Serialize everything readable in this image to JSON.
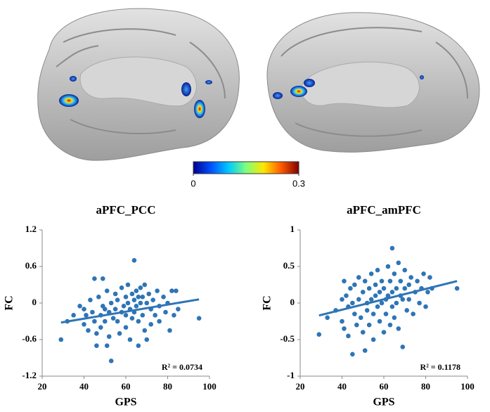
{
  "chart_data": [
    {
      "type": "colorbar",
      "colors": [
        "#00008f",
        "#0050ff",
        "#00c8ff",
        "#7dff7d",
        "#ffe600",
        "#ff5a00",
        "#800000"
      ],
      "xlim": [
        0,
        0.3
      ],
      "xticks": [
        0,
        0.3
      ]
    },
    {
      "type": "scatter",
      "title": "aPFC_PCC",
      "x_label": "GPS",
      "y_label": "FC",
      "annotation": "R² = 0.0734",
      "color": "#2e75b6",
      "xlim": [
        20,
        100
      ],
      "xticks": [
        20,
        40,
        60,
        80,
        100
      ],
      "ylim": [
        -1.2,
        1.2
      ],
      "yticks": [
        -1.2,
        -0.6,
        0,
        0.6,
        1.2
      ],
      "x": [
        29,
        32,
        35,
        38,
        40,
        40,
        41,
        42,
        43,
        44,
        45,
        45,
        46,
        46,
        47,
        48,
        48,
        49,
        49,
        50,
        50,
        51,
        51,
        52,
        52,
        53,
        53,
        54,
        55,
        55,
        56,
        56,
        57,
        58,
        58,
        59,
        60,
        60,
        60,
        61,
        61,
        62,
        62,
        63,
        63,
        64,
        64,
        64,
        65,
        65,
        66,
        66,
        66,
        67,
        67,
        68,
        68,
        69,
        69,
        70,
        70,
        71,
        72,
        72,
        73,
        74,
        75,
        76,
        76,
        78,
        79,
        80,
        81,
        82,
        83,
        84,
        85,
        95
      ],
      "values": [
        -0.6,
        -0.3,
        -0.2,
        -0.05,
        -0.1,
        -0.35,
        -0.2,
        -0.45,
        0.05,
        -0.15,
        0.4,
        -0.3,
        -0.5,
        -0.7,
        0.1,
        -0.2,
        -0.4,
        0.4,
        -0.05,
        -0.1,
        -0.3,
        -0.7,
        0.2,
        -0.15,
        -0.55,
        -0.95,
        0.0,
        -0.25,
        0.15,
        -0.1,
        -0.3,
        0.05,
        -0.5,
        -0.15,
        0.25,
        -0.05,
        0.1,
        -0.2,
        -0.4,
        0.3,
        0.0,
        -0.1,
        -0.6,
        0.15,
        -0.25,
        0.7,
        0.05,
        -0.15,
        0.2,
        -0.05,
        0.1,
        -0.3,
        -0.7,
        0.0,
        0.25,
        -0.2,
        0.1,
        -0.45,
        0.3,
        0.0,
        -0.6,
        0.15,
        -0.1,
        -0.35,
        0.05,
        -0.2,
        0.2,
        -0.05,
        -0.3,
        0.1,
        -0.15,
        0.0,
        -0.45,
        0.2,
        -0.2,
        0.2,
        -0.1,
        -0.25
      ],
      "trendline": {
        "x": [
          29,
          95
        ],
        "values": [
          -0.32,
          0.06
        ]
      }
    },
    {
      "type": "scatter",
      "title": "aPFC_amPFC",
      "x_label": "GPS",
      "y_label": "FC",
      "annotation": "R² = 0.1178",
      "color": "#2e75b6",
      "xlim": [
        20,
        100
      ],
      "xticks": [
        20,
        40,
        60,
        80,
        100
      ],
      "ylim": [
        -1,
        1
      ],
      "yticks": [
        -1,
        -0.5,
        0,
        0.5,
        1
      ],
      "x": [
        29,
        33,
        37,
        40,
        40,
        41,
        41,
        42,
        43,
        43,
        44,
        45,
        45,
        46,
        46,
        47,
        48,
        48,
        49,
        50,
        50,
        51,
        51,
        52,
        52,
        53,
        53,
        54,
        54,
        55,
        55,
        56,
        56,
        57,
        57,
        58,
        58,
        59,
        59,
        60,
        60,
        61,
        61,
        62,
        62,
        63,
        63,
        64,
        64,
        64,
        65,
        65,
        66,
        66,
        67,
        67,
        68,
        68,
        69,
        69,
        70,
        70,
        71,
        72,
        72,
        73,
        74,
        75,
        76,
        77,
        78,
        79,
        80,
        81,
        82,
        83,
        95
      ],
      "values": [
        -0.43,
        -0.2,
        -0.1,
        0.05,
        -0.25,
        0.3,
        -0.35,
        0.1,
        -0.05,
        -0.45,
        0.2,
        0.0,
        -0.7,
        0.25,
        -0.15,
        -0.3,
        0.35,
        0.05,
        -0.2,
        0.15,
        -0.4,
        -0.65,
        0.3,
        0.0,
        -0.1,
        0.2,
        -0.3,
        0.05,
        0.4,
        -0.15,
        -0.5,
        0.25,
        0.1,
        -0.05,
        0.45,
        -0.25,
        0.15,
        0.3,
        0.0,
        -0.4,
        0.2,
        0.05,
        -0.15,
        0.5,
        0.1,
        -0.3,
        0.3,
        0.75,
        -0.05,
        0.15,
        0.4,
        -0.2,
        0.2,
        0.0,
        0.55,
        -0.35,
        0.1,
        0.3,
        -0.6,
        0.05,
        0.2,
        0.45,
        -0.1,
        0.25,
        0.05,
        0.35,
        -0.15,
        0.15,
        0.3,
        0.0,
        0.2,
        0.4,
        -0.05,
        0.15,
        0.35,
        0.2,
        0.2
      ],
      "trendline": {
        "x": [
          29,
          95
        ],
        "values": [
          -0.17,
          0.3
        ]
      }
    }
  ]
}
